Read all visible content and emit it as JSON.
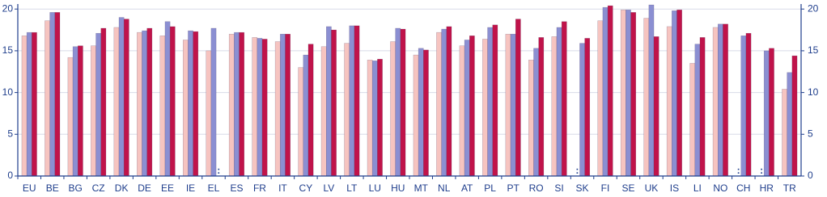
{
  "chart_data": {
    "type": "bar",
    "categories": [
      "EU",
      "BE",
      "BG",
      "CZ",
      "DK",
      "DE",
      "EE",
      "IE",
      "EL",
      "ES",
      "FR",
      "IT",
      "CY",
      "LV",
      "LT",
      "LU",
      "HU",
      "MT",
      "NL",
      "AT",
      "PL",
      "PT",
      "RO",
      "SI",
      "SK",
      "FI",
      "SE",
      "UK",
      "IS",
      "LI",
      "NO",
      "CH",
      "HR",
      "TR"
    ],
    "series": [
      {
        "color": "#f6c4c0",
        "values": [
          16.8,
          18.6,
          14.2,
          15.6,
          17.8,
          17.2,
          16.8,
          16.3,
          15.0,
          17.0,
          16.6,
          16.1,
          13.0,
          15.5,
          15.9,
          13.9,
          16.1,
          14.5,
          17.2,
          15.6,
          16.4,
          17.0,
          13.9,
          16.7,
          null,
          18.6,
          19.9,
          18.9,
          17.9,
          13.5,
          17.8,
          null,
          null,
          10.4
        ]
      },
      {
        "color": "#8b8fd2",
        "values": [
          17.2,
          19.6,
          15.5,
          17.1,
          19.0,
          17.4,
          18.5,
          17.4,
          17.7,
          17.2,
          16.5,
          17.0,
          14.5,
          17.9,
          18.0,
          13.8,
          17.7,
          15.3,
          17.6,
          16.3,
          17.8,
          17.0,
          15.3,
          17.8,
          15.9,
          20.2,
          19.9,
          20.5,
          19.8,
          15.8,
          18.2,
          16.8,
          15.0,
          12.4
        ]
      },
      {
        "color": "#c0134a",
        "values": [
          17.2,
          19.6,
          15.6,
          17.7,
          18.8,
          17.7,
          17.9,
          17.3,
          null,
          17.2,
          16.4,
          17.0,
          15.8,
          17.5,
          18.0,
          14.0,
          17.6,
          15.1,
          17.9,
          16.8,
          18.1,
          18.8,
          16.6,
          18.5,
          16.5,
          20.4,
          19.6,
          16.7,
          19.9,
          16.6,
          18.2,
          17.1,
          15.3,
          14.4
        ]
      }
    ],
    "missing_label": ":",
    "ylim": [
      0,
      20.6
    ],
    "yticks": [
      0,
      5,
      10,
      15,
      20
    ],
    "y2lim": [
      0,
      20.6
    ],
    "y2ticks": [
      0,
      5,
      10,
      15,
      20
    ],
    "grid": true
  }
}
